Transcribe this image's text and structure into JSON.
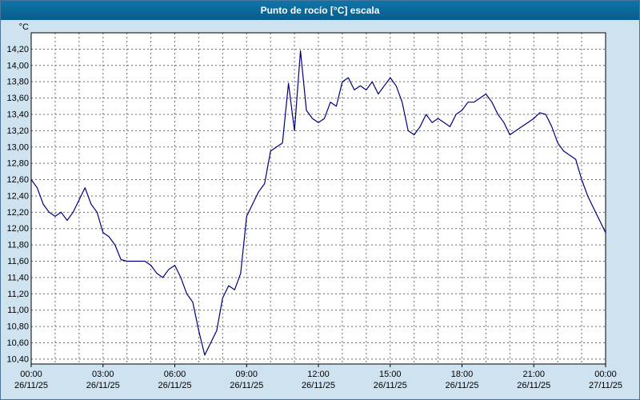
{
  "window": {
    "title": "Punto de rocío [°C] escala"
  },
  "chart_data": {
    "type": "line",
    "title": "Punto de rocío [°C] escala",
    "xlabel": "",
    "ylabel": "°C",
    "ylim": [
      10.4,
      14.2
    ],
    "y_step": 0.2,
    "y_label_decimal": "comma",
    "grid": true,
    "legend_position": "none",
    "line_color": "#00007f",
    "background_color": "#ffffff",
    "panel_color": "#cfe2f0",
    "titlebar_color": "#0a699c",
    "x_hours_range": [
      0,
      24
    ],
    "x_interval_hours": 0.25,
    "x_tick_hours": [
      0,
      3,
      6,
      9,
      12,
      15,
      18,
      21,
      24
    ],
    "x_tick_labels": [
      "00:00",
      "03:00",
      "06:00",
      "09:00",
      "12:00",
      "15:00",
      "18:00",
      "21:00",
      "00:00"
    ],
    "x_tick_dates": [
      "26/11/25",
      "26/11/25",
      "26/11/25",
      "26/11/25",
      "26/11/25",
      "26/11/25",
      "26/11/25",
      "26/11/25",
      "27/11/25"
    ],
    "series": [
      {
        "name": "Punto de rocío [°C]",
        "values": [
          12.6,
          12.5,
          12.3,
          12.2,
          12.15,
          12.2,
          12.1,
          12.2,
          12.35,
          12.5,
          12.3,
          12.2,
          11.95,
          11.9,
          11.8,
          11.62,
          11.6,
          11.6,
          11.6,
          11.6,
          11.55,
          11.45,
          11.4,
          11.5,
          11.55,
          11.4,
          11.2,
          11.1,
          10.75,
          10.45,
          10.6,
          10.75,
          11.15,
          11.3,
          11.25,
          11.45,
          12.15,
          12.3,
          12.45,
          12.55,
          12.95,
          13.0,
          13.05,
          13.78,
          13.2,
          14.18,
          13.45,
          13.35,
          13.3,
          13.35,
          13.55,
          13.5,
          13.8,
          13.85,
          13.7,
          13.75,
          13.7,
          13.8,
          13.65,
          13.75,
          13.85,
          13.75,
          13.55,
          13.2,
          13.15,
          13.25,
          13.4,
          13.3,
          13.35,
          13.3,
          13.25,
          13.4,
          13.45,
          13.55,
          13.55,
          13.6,
          13.65,
          13.55,
          13.4,
          13.3,
          13.15,
          13.2,
          13.25,
          13.3,
          13.35,
          13.42,
          13.4,
          13.25,
          13.05,
          12.95,
          12.9,
          12.85,
          12.6,
          12.4,
          12.25,
          12.1,
          11.95
        ]
      }
    ]
  }
}
